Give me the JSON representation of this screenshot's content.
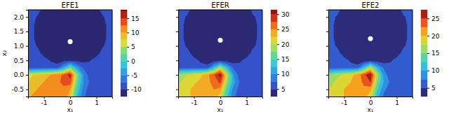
{
  "chart_data": [
    {
      "type": "contour",
      "title": "EFE1",
      "xlabel": "x₁",
      "ylabel": "x₂",
      "xlim": [
        -1.6,
        1.6
      ],
      "ylim": [
        -0.75,
        2.25
      ],
      "xticks": [
        -1,
        0,
        1
      ],
      "yticks": [
        -0.5,
        {
          "value": 0,
          "label": "0.0"
        },
        0.5,
        {
          "value": 1,
          "label": "1.0"
        },
        1.5,
        {
          "value": 2,
          "label": "2.0"
        }
      ],
      "x": [
        -1.75,
        -1.5,
        -1.25,
        -1.0,
        -0.75,
        -0.5,
        -0.25,
        0,
        0.25,
        0.5,
        0.75,
        1.0,
        1.25,
        1.5,
        1.75
      ],
      "y": [
        -0.75,
        -0.5,
        -0.25,
        0,
        0.25,
        0.5,
        0.75,
        1.0,
        1.25,
        1.5,
        1.75,
        2.0,
        2.25
      ],
      "z": [
        [
          9,
          10,
          10,
          11,
          11,
          12,
          12,
          8,
          -2,
          -7,
          -9,
          -9,
          -9,
          -9,
          -9
        ],
        [
          8,
          9,
          10,
          11,
          11,
          12,
          12,
          10,
          0,
          -6,
          -9,
          -9,
          -9,
          -9,
          -9
        ],
        [
          7,
          8,
          9,
          10,
          11,
          12,
          13,
          14,
          2,
          -5,
          -8,
          -9,
          -9,
          -9,
          -9
        ],
        [
          6,
          7,
          8,
          9,
          10,
          11,
          13,
          16,
          4,
          -5,
          -9,
          -9,
          -9,
          -9,
          -9
        ],
        [
          -9,
          -9,
          -9,
          -9,
          -9,
          -9,
          -4,
          3,
          -4,
          -8,
          -9,
          -9,
          -9,
          -9,
          -9
        ],
        [
          -9,
          -9,
          -9,
          -9,
          -10.2,
          -11,
          -11,
          -11,
          -11,
          -11,
          -10.2,
          -9,
          -9,
          -9,
          -9
        ],
        [
          -9,
          -9,
          -9,
          -11,
          -11,
          -11,
          -11,
          -11,
          -11,
          -11,
          -11,
          -11,
          -9,
          -9,
          -9
        ],
        [
          -9,
          -9,
          -10.2,
          -11,
          -11,
          -11,
          -11,
          -11,
          -11,
          -11,
          -11,
          -11,
          -10.2,
          -9,
          -9
        ],
        [
          -9,
          -9,
          -11,
          -11,
          -11,
          -11,
          -11,
          -11,
          -11,
          -11,
          -11,
          -11,
          -11,
          -9,
          -9
        ],
        [
          -9,
          -9,
          -11,
          -11,
          -11,
          -11,
          -11,
          -11,
          -11,
          -11,
          -11,
          -11,
          -11,
          -9,
          -9
        ],
        [
          -9,
          -9,
          -11,
          -11,
          -11,
          -11,
          -11,
          -11,
          -11,
          -11,
          -11,
          -11,
          -11,
          -9,
          -9
        ],
        [
          -9,
          -9,
          -10.2,
          -11,
          -11,
          -11,
          -11,
          -11,
          -11,
          -11,
          -11,
          -11,
          -10.2,
          -9,
          -9
        ],
        [
          -9,
          -9,
          -9,
          -11,
          -11,
          -11,
          -11,
          -11,
          -11,
          -11,
          -11,
          -11,
          -9,
          -9,
          -9
        ]
      ],
      "point": {
        "x": 0,
        "y": 1.15
      },
      "colorbar": {
        "range": [
          -12.5,
          18
        ],
        "ticks": [
          -10,
          -5,
          0,
          5,
          10,
          15
        ],
        "levels": [
          -12.5,
          -10,
          -7.5,
          -5,
          -2.5,
          0,
          2.5,
          5,
          7.5,
          10,
          12.5,
          15,
          17.5
        ]
      }
    },
    {
      "type": "contour",
      "title": "EFER",
      "xlabel": "x₁",
      "tick_labels": "x",
      "xlim": [
        -1.6,
        1.6
      ],
      "ylim": [
        -0.75,
        2.25
      ],
      "xticks": [
        -1,
        0,
        1
      ],
      "yticks": [
        -0.5,
        0,
        0.5,
        1,
        1.5,
        2
      ],
      "x": [
        -1.75,
        -1.5,
        -1.25,
        -1.0,
        -0.75,
        -0.5,
        -0.25,
        0,
        0.25,
        0.5,
        0.75,
        1.0,
        1.25,
        1.5,
        1.75
      ],
      "y": [
        -0.75,
        -0.5,
        -0.25,
        0,
        0.25,
        0.5,
        0.75,
        1.0,
        1.25,
        1.5,
        1.75,
        2.0,
        2.25
      ],
      "z": [
        [
          21,
          22,
          22,
          23,
          23,
          24,
          24,
          21,
          13,
          8,
          6,
          6,
          6,
          6,
          6
        ],
        [
          20,
          21,
          22,
          23,
          23,
          24,
          25,
          24,
          15,
          9,
          6.5,
          6,
          6,
          6,
          6
        ],
        [
          19,
          20,
          21,
          22,
          23,
          24,
          26,
          28,
          18,
          11,
          7,
          6,
          6,
          6,
          6
        ],
        [
          18,
          19,
          20,
          21,
          22,
          24,
          27,
          31,
          20,
          10,
          6,
          6,
          6,
          6,
          6
        ],
        [
          6,
          6,
          6,
          6,
          6,
          6,
          12,
          20,
          12,
          7,
          6,
          6,
          6,
          6,
          6
        ],
        [
          6,
          6,
          6,
          6,
          4.5,
          3.5,
          3.5,
          3.5,
          3.5,
          3.5,
          4.5,
          6,
          6,
          6,
          6
        ],
        [
          6,
          6,
          6,
          3.5,
          3.5,
          3.5,
          3.5,
          3.5,
          3.5,
          3.5,
          3.5,
          3.5,
          6,
          6,
          6
        ],
        [
          6,
          6,
          4.5,
          3.5,
          3.5,
          3.5,
          3.5,
          3.5,
          3.5,
          3.5,
          3.5,
          3.5,
          4.5,
          6,
          6
        ],
        [
          6,
          6,
          3.5,
          3.5,
          3.5,
          3.5,
          3.5,
          3.5,
          3.5,
          3.5,
          3.5,
          3.5,
          3.5,
          6,
          6
        ],
        [
          6,
          6,
          3.5,
          3.5,
          3.5,
          3.5,
          3.5,
          3.5,
          3.5,
          3.5,
          3.5,
          3.5,
          3.5,
          6,
          6
        ],
        [
          6,
          6,
          3.5,
          3.5,
          3.5,
          3.5,
          3.5,
          3.5,
          3.5,
          3.5,
          3.5,
          3.5,
          3.5,
          6,
          6
        ],
        [
          6,
          6,
          4.5,
          3.5,
          3.5,
          3.5,
          3.5,
          3.5,
          3.5,
          3.5,
          3.5,
          3.5,
          4.5,
          6,
          6
        ],
        [
          6,
          6,
          6,
          3.5,
          3.5,
          3.5,
          3.5,
          3.5,
          3.5,
          3.5,
          3.5,
          3.5,
          6,
          6,
          6
        ]
      ],
      "point": {
        "x": 0,
        "y": 1.2
      },
      "colorbar": {
        "range": [
          2.5,
          31.5
        ],
        "ticks": [
          5,
          10,
          15,
          20,
          25,
          30
        ],
        "levels": [
          2.5,
          5,
          7.5,
          10,
          12.5,
          15,
          17.5,
          20,
          22.5,
          25,
          27.5,
          30
        ]
      }
    },
    {
      "type": "contour",
      "title": "EFE2",
      "xlabel": "x₁",
      "tick_labels": "x",
      "xlim": [
        -1.6,
        1.6
      ],
      "ylim": [
        -0.75,
        2.25
      ],
      "xticks": [
        -1,
        0,
        1
      ],
      "yticks": [
        -0.5,
        0,
        0.5,
        1,
        1.5,
        2
      ],
      "x": [
        -1.75,
        -1.5,
        -1.25,
        -1.0,
        -0.75,
        -0.5,
        -0.25,
        0,
        0.25,
        0.5,
        0.75,
        1.0,
        1.25,
        1.5,
        1.75
      ],
      "y": [
        -0.75,
        -0.5,
        -0.25,
        0,
        0.25,
        0.5,
        0.75,
        1.0,
        1.25,
        1.5,
        1.75,
        2.0,
        2.25
      ],
      "z": [
        [
          18,
          19,
          19,
          20,
          20,
          21,
          21,
          18,
          11,
          7,
          6,
          6,
          6,
          6,
          6
        ],
        [
          17,
          18,
          19,
          20,
          20,
          21,
          22,
          21,
          13,
          8,
          6.5,
          6,
          6,
          6,
          6
        ],
        [
          16,
          17,
          18,
          19,
          20,
          21,
          23,
          25,
          15,
          10,
          7,
          6,
          6,
          6,
          6
        ],
        [
          15,
          16,
          17,
          18,
          19,
          21,
          24,
          27,
          17,
          9,
          6,
          6,
          6,
          6,
          6
        ],
        [
          6,
          6,
          6,
          6,
          6,
          6,
          11,
          18,
          11,
          7,
          6,
          6,
          6,
          6,
          6
        ],
        [
          6,
          6,
          6,
          6,
          4.5,
          3.5,
          3.5,
          3.5,
          3.5,
          3.5,
          4.5,
          6,
          6,
          6,
          6
        ],
        [
          6,
          6,
          6,
          3.5,
          3.5,
          3.5,
          3.5,
          3.5,
          3.5,
          3.5,
          3.5,
          3.5,
          6,
          6,
          6
        ],
        [
          6,
          6,
          4.5,
          3.5,
          3.5,
          3.5,
          3.5,
          3.5,
          3.5,
          3.5,
          3.5,
          3.5,
          4.5,
          6,
          6
        ],
        [
          6,
          6,
          3.5,
          3.5,
          3.5,
          3.5,
          3.5,
          3.5,
          3.5,
          3.5,
          3.5,
          3.5,
          3.5,
          6,
          6
        ],
        [
          6,
          6,
          3.5,
          3.5,
          3.5,
          3.5,
          3.5,
          3.5,
          3.5,
          3.5,
          3.5,
          3.5,
          3.5,
          6,
          6
        ],
        [
          6,
          6,
          3.5,
          3.5,
          3.5,
          3.5,
          3.5,
          3.5,
          3.5,
          3.5,
          3.5,
          3.5,
          3.5,
          6,
          6
        ],
        [
          6,
          6,
          4.5,
          3.5,
          3.5,
          3.5,
          3.5,
          3.5,
          3.5,
          3.5,
          3.5,
          3.5,
          4.5,
          6,
          6
        ],
        [
          6,
          6,
          6,
          3.5,
          3.5,
          3.5,
          3.5,
          3.5,
          3.5,
          3.5,
          3.5,
          3.5,
          6,
          6,
          6
        ]
      ],
      "point": {
        "x": 0,
        "y": 1.25
      },
      "colorbar": {
        "range": [
          2.5,
          27.5
        ],
        "ticks": [
          5,
          10,
          15,
          20,
          25
        ],
        "levels": [
          2.5,
          5,
          7.5,
          10,
          12.5,
          15,
          17.5,
          20,
          22.5,
          25
        ]
      }
    }
  ]
}
